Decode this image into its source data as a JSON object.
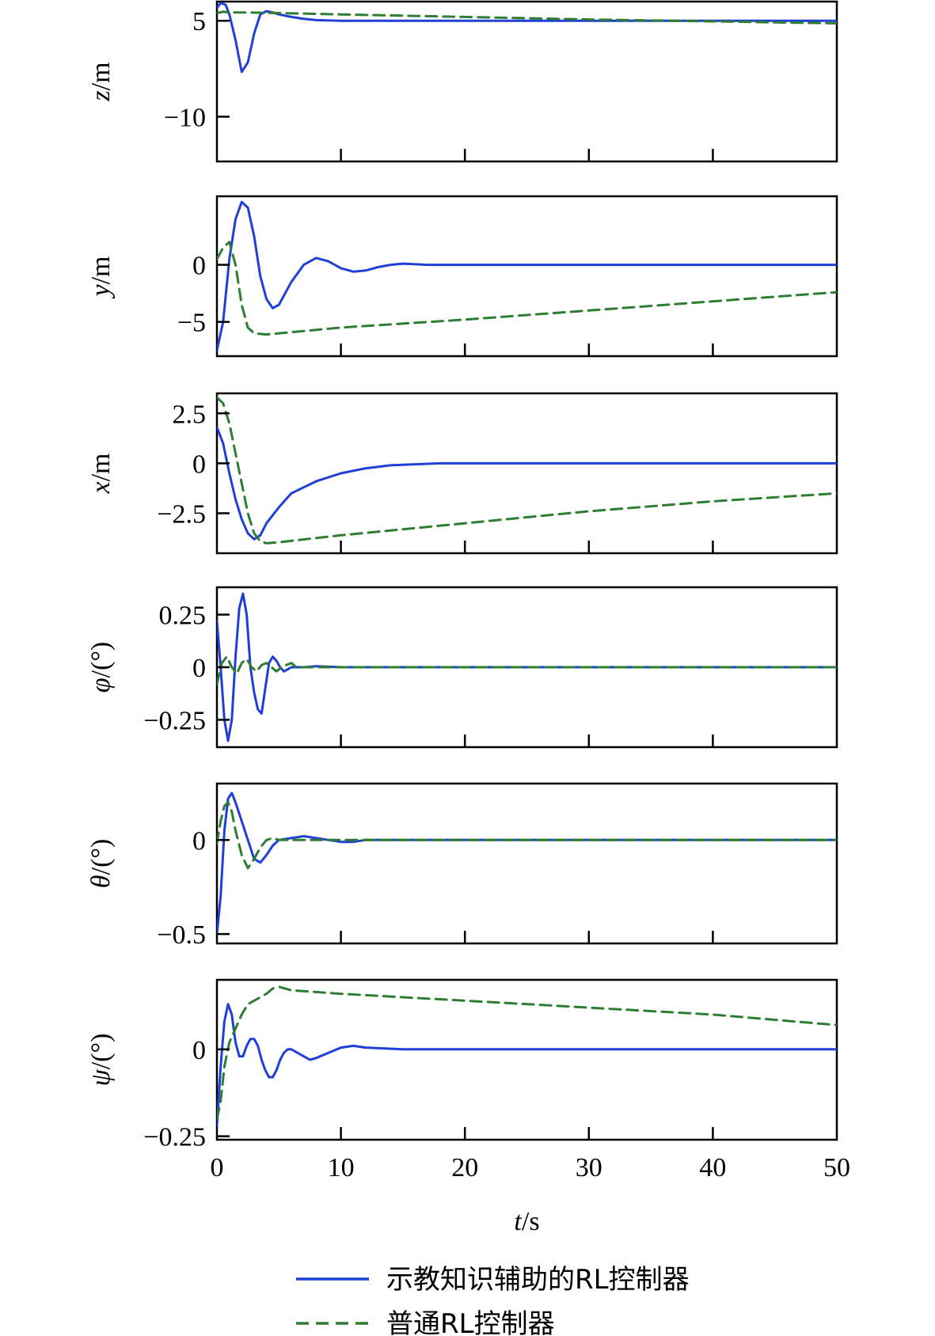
{
  "chart_data": {
    "type": "line",
    "xlabel": "t/s",
    "xlabel_parts": [
      "t",
      "/s"
    ],
    "xlim": [
      0,
      50
    ],
    "xticks": [
      0,
      10,
      20,
      30,
      40,
      50
    ],
    "legend": {
      "placement": "bottom-center",
      "entries": [
        {
          "name": "示教知识辅助的RL控制器",
          "color": "#1f3fd6",
          "dash": "solid"
        },
        {
          "name": "普通RL控制器",
          "color": "#2e7d32",
          "dash": "dashed"
        }
      ]
    },
    "grid": false,
    "panels": [
      {
        "id": "z",
        "ylabel": "z/m",
        "ylabel_parts": [
          "z",
          "/m"
        ],
        "ylim": [
          -17,
          8
        ],
        "yticks": [
          5,
          -10
        ],
        "ytick_labels": [
          "5",
          "−10"
        ],
        "series": [
          {
            "name": "示教知识辅助的RL控制器",
            "x": [
              0,
              0.3,
              0.7,
              1.0,
              1.5,
              2.0,
              2.5,
              3.0,
              3.5,
              4.0,
              4.5,
              5.0,
              6,
              7,
              8,
              10,
              12,
              15,
              20,
              30,
              40,
              50
            ],
            "y": [
              7,
              7.8,
              7.5,
              6,
              2,
              -3,
              -1.5,
              3,
              6,
              6.5,
              6.3,
              6.0,
              5.6,
              5.3,
              5.1,
              5.0,
              5.0,
              5.0,
              5.0,
              5.0,
              5.0,
              5.0
            ]
          },
          {
            "name": "普通RL控制器",
            "x": [
              0,
              0.5,
              1,
              2,
              5,
              10,
              20,
              30,
              40,
              50
            ],
            "y": [
              6.2,
              6.4,
              6.3,
              6.3,
              6.2,
              6.0,
              5.6,
              5.2,
              4.9,
              4.6
            ]
          }
        ]
      },
      {
        "id": "y",
        "ylabel": "y/m",
        "ylabel_parts": [
          "y",
          "/m"
        ],
        "ylim": [
          -8,
          6
        ],
        "yticks": [
          0,
          -5
        ],
        "ytick_labels": [
          "0",
          "−5"
        ],
        "series": [
          {
            "name": "示教知识辅助的RL控制器",
            "x": [
              0,
              0.5,
              1.0,
              1.5,
              2.0,
              2.5,
              3.0,
              3.5,
              4.0,
              4.5,
              5.0,
              6,
              7,
              8,
              9,
              10,
              11,
              12,
              13,
              14,
              15,
              17,
              20,
              25,
              30,
              40,
              50
            ],
            "y": [
              -7.5,
              -5,
              0.5,
              4.0,
              5.5,
              5.0,
              2.5,
              -1.0,
              -3.0,
              -3.8,
              -3.5,
              -1.5,
              0,
              0.6,
              0.3,
              -0.3,
              -0.6,
              -0.5,
              -0.2,
              0,
              0.1,
              0,
              0,
              0,
              0,
              0,
              0
            ]
          },
          {
            "name": "普通RL控制器",
            "x": [
              0,
              0.5,
              1.0,
              1.5,
              2.0,
              2.5,
              3.0,
              4,
              5,
              10,
              20,
              30,
              40,
              50
            ],
            "y": [
              0.5,
              1.5,
              2.0,
              0,
              -3.5,
              -5.5,
              -6.0,
              -6.1,
              -6.0,
              -5.5,
              -4.8,
              -4.0,
              -3.2,
              -2.4
            ]
          }
        ]
      },
      {
        "id": "x",
        "ylabel": "x/m",
        "ylabel_parts": [
          "x",
          "/m"
        ],
        "ylim": [
          -4.5,
          3.5
        ],
        "yticks": [
          2.5,
          0,
          -2.5
        ],
        "ytick_labels": [
          "2.5",
          "0",
          "−2.5"
        ],
        "series": [
          {
            "name": "示教知识辅助的RL控制器",
            "x": [
              0,
              0.5,
              1.0,
              1.5,
              2.0,
              2.5,
              3.0,
              3.5,
              4.0,
              5.0,
              6,
              8,
              10,
              12,
              14,
              16,
              18,
              20,
              25,
              30,
              40,
              50
            ],
            "y": [
              1.8,
              1.0,
              -0.5,
              -1.8,
              -2.8,
              -3.5,
              -3.8,
              -3.6,
              -3.0,
              -2.2,
              -1.5,
              -0.9,
              -0.5,
              -0.25,
              -0.1,
              -0.05,
              0,
              0,
              0,
              0,
              0,
              0
            ]
          },
          {
            "name": "普通RL控制器",
            "x": [
              0,
              0.5,
              1.0,
              1.5,
              2.0,
              2.5,
              3.0,
              3.5,
              4.0,
              5,
              10,
              20,
              30,
              40,
              50
            ],
            "y": [
              3.3,
              3.0,
              2.0,
              0.5,
              -1.0,
              -2.5,
              -3.5,
              -3.9,
              -4.0,
              -3.95,
              -3.6,
              -3.0,
              -2.4,
              -1.9,
              -1.5
            ]
          }
        ]
      },
      {
        "id": "phi",
        "ylabel": "φ/(°)",
        "ylabel_parts": [
          "φ",
          "/(°)"
        ],
        "ylim": [
          -0.38,
          0.38
        ],
        "yticks": [
          0.25,
          0,
          -0.25
        ],
        "ytick_labels": [
          "0.25",
          "0",
          "−0.25"
        ],
        "series": [
          {
            "name": "示教知识辅助的RL控制器",
            "x": [
              0,
              0.3,
              0.6,
              0.9,
              1.2,
              1.5,
              1.8,
              2.1,
              2.4,
              2.7,
              3.0,
              3.3,
              3.6,
              3.9,
              4.2,
              4.5,
              4.8,
              5.1,
              5.4,
              5.7,
              6,
              7,
              8,
              10,
              15,
              20,
              30,
              40,
              50
            ],
            "y": [
              0.22,
              0,
              -0.25,
              -0.35,
              -0.25,
              0.05,
              0.28,
              0.35,
              0.25,
              0,
              -0.12,
              -0.2,
              -0.22,
              -0.1,
              0.02,
              0.05,
              0.03,
              0,
              -0.02,
              -0.01,
              0,
              0,
              0.005,
              0,
              0,
              0,
              0,
              0,
              0
            ]
          },
          {
            "name": "普通RL控制器",
            "x": [
              0,
              0.4,
              0.8,
              1.2,
              1.6,
              2.0,
              2.4,
              2.8,
              3.2,
              3.6,
              4.0,
              4.4,
              4.8,
              5.2,
              5.6,
              6.0,
              6.4,
              7,
              8,
              10,
              20,
              30,
              40,
              50
            ],
            "y": [
              -0.08,
              0.02,
              0.05,
              0,
              -0.03,
              0.02,
              0.04,
              0.0,
              -0.02,
              0.01,
              0.02,
              0,
              -0.02,
              0,
              0.01,
              0.02,
              0,
              0,
              0,
              0,
              0,
              0,
              0,
              0
            ]
          }
        ]
      },
      {
        "id": "theta",
        "ylabel": "θ/(°)",
        "ylabel_parts": [
          "θ",
          "/(°)"
        ],
        "ylim": [
          -0.55,
          0.3
        ],
        "yticks": [
          0,
          -0.5
        ],
        "ytick_labels": [
          "0",
          "−0.5"
        ],
        "series": [
          {
            "name": "示教知识辅助的RL控制器",
            "x": [
              0,
              0.3,
              0.6,
              0.9,
              1.2,
              1.5,
              2.0,
              2.5,
              3.0,
              3.5,
              4.0,
              4.5,
              5.0,
              6,
              7,
              8,
              9,
              10,
              11,
              12,
              15,
              20,
              30,
              40,
              50
            ],
            "y": [
              -0.5,
              -0.3,
              0.05,
              0.22,
              0.25,
              0.2,
              0.1,
              0,
              -0.1,
              -0.12,
              -0.08,
              -0.03,
              0,
              0.01,
              0.02,
              0.01,
              0,
              -0.01,
              -0.01,
              0,
              0,
              0,
              0,
              0,
              0
            ]
          },
          {
            "name": "普通RL控制器",
            "x": [
              0,
              0.3,
              0.6,
              0.9,
              1.2,
              1.5,
              2.0,
              2.5,
              3.0,
              3.5,
              4.0,
              4.5,
              5.0,
              6,
              8,
              10,
              20,
              30,
              40,
              50
            ],
            "y": [
              -0.02,
              0.1,
              0.18,
              0.2,
              0.15,
              0.05,
              -0.08,
              -0.15,
              -0.1,
              -0.04,
              0,
              0.01,
              0,
              0,
              0,
              0,
              0,
              0,
              0,
              0
            ]
          }
        ]
      },
      {
        "id": "psi",
        "ylabel": "ψ/(°)",
        "ylabel_parts": [
          "ψ",
          "/(°)"
        ],
        "ylim": [
          -0.26,
          0.2
        ],
        "yticks": [
          0,
          -0.25
        ],
        "ytick_labels": [
          "0",
          "−0.25"
        ],
        "series": [
          {
            "name": "示教知识辅助的RL控制器",
            "x": [
              0,
              0.3,
              0.6,
              0.9,
              1.2,
              1.5,
              1.8,
              2.1,
              2.4,
              2.7,
              3.0,
              3.3,
              3.6,
              3.9,
              4.2,
              4.5,
              4.8,
              5.1,
              5.4,
              5.7,
              6.0,
              6.5,
              7.0,
              7.5,
              8.0,
              9,
              10,
              11,
              12,
              15,
              20,
              30,
              40,
              50
            ],
            "y": [
              -0.22,
              -0.05,
              0.08,
              0.13,
              0.1,
              0.02,
              -0.02,
              -0.02,
              0.01,
              0.03,
              0.03,
              0.01,
              -0.03,
              -0.06,
              -0.08,
              -0.08,
              -0.06,
              -0.03,
              -0.01,
              0,
              0,
              -0.01,
              -0.02,
              -0.03,
              -0.025,
              -0.01,
              0.005,
              0.01,
              0.005,
              0,
              0,
              0,
              0,
              0
            ]
          },
          {
            "name": "普通RL控制器",
            "x": [
              0,
              0.3,
              0.6,
              1.0,
              1.5,
              2.0,
              2.5,
              3.0,
              3.5,
              4.0,
              4.5,
              5.0,
              5.5,
              6,
              8,
              10,
              15,
              20,
              30,
              40,
              50
            ],
            "y": [
              -0.2,
              -0.15,
              -0.05,
              0.02,
              0.06,
              0.1,
              0.13,
              0.14,
              0.15,
              0.16,
              0.175,
              0.18,
              0.175,
              0.17,
              0.165,
              0.16,
              0.15,
              0.14,
              0.12,
              0.1,
              0.07
            ]
          }
        ]
      }
    ]
  }
}
